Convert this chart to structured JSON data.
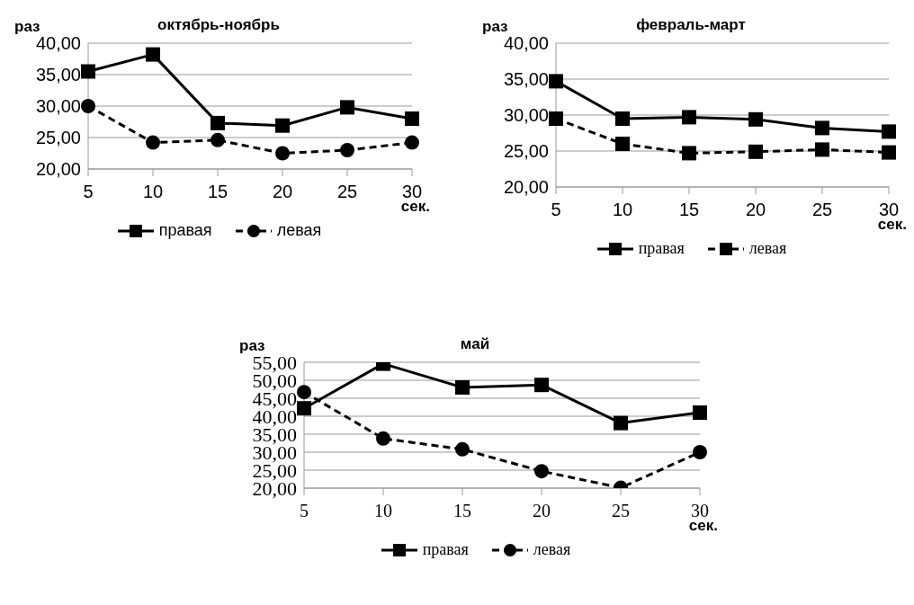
{
  "chart_data": [
    {
      "type": "line",
      "title": "октябрь-ноябрь",
      "ylabel": "раз",
      "xlabel": "сек.",
      "categories": [
        "5",
        "10",
        "15",
        "20",
        "25",
        "30"
      ],
      "series": [
        {
          "name": "правая",
          "color": "#000000",
          "marker": "square",
          "line_style": "solid",
          "values": [
            35.5,
            38.2,
            27.3,
            26.9,
            29.8,
            28.0
          ]
        },
        {
          "name": "левая",
          "color": "#000000",
          "marker": "circle",
          "line_style": "dashed",
          "values": [
            30.0,
            24.2,
            24.6,
            22.5,
            23.0,
            24.2
          ]
        }
      ],
      "ylim": [
        20,
        40
      ],
      "yticks": [
        {
          "value": 20,
          "label": "20,00"
        },
        {
          "value": 25,
          "label": "25,00"
        },
        {
          "value": 30,
          "label": "30,00"
        },
        {
          "value": 35,
          "label": "35,00"
        },
        {
          "value": 40,
          "label": "40,00"
        }
      ],
      "grid": "y",
      "legend": "bottom"
    },
    {
      "type": "line",
      "title": "февраль-март",
      "ylabel": "раз",
      "xlabel": "сек.",
      "categories": [
        "5",
        "10",
        "15",
        "20",
        "25",
        "30"
      ],
      "series": [
        {
          "name": "правая",
          "color": "#000000",
          "marker": "square",
          "line_style": "solid",
          "values": [
            34.7,
            29.5,
            29.7,
            29.4,
            28.2,
            27.7
          ]
        },
        {
          "name": "левая",
          "color": "#000000",
          "marker": "square",
          "line_style": "dashed",
          "values": [
            29.5,
            26.0,
            24.7,
            24.9,
            25.2,
            24.8
          ]
        }
      ],
      "ylim": [
        20,
        40
      ],
      "yticks": [
        {
          "value": 20,
          "label": "20,00"
        },
        {
          "value": 25,
          "label": "25,00"
        },
        {
          "value": 30,
          "label": "30,00"
        },
        {
          "value": 35,
          "label": "35,00"
        },
        {
          "value": 40,
          "label": "40,00"
        }
      ],
      "grid": "y",
      "legend": "bottom"
    },
    {
      "type": "line",
      "title": "май",
      "ylabel": "раз",
      "xlabel": "сек.",
      "categories": [
        "5",
        "10",
        "15",
        "20",
        "25",
        "30"
      ],
      "series": [
        {
          "name": "правая",
          "color": "#000000",
          "marker": "square",
          "line_style": "solid",
          "values": [
            42.2,
            54.6,
            48.0,
            48.7,
            38.1,
            41.0
          ]
        },
        {
          "name": "левая",
          "color": "#000000",
          "marker": "circle",
          "line_style": "dashed",
          "values": [
            46.7,
            33.8,
            30.8,
            24.7,
            20.1,
            30.0
          ]
        }
      ],
      "ylim": [
        20,
        55
      ],
      "yticks": [
        {
          "value": 20,
          "label": "20,00"
        },
        {
          "value": 25,
          "label": "25,00"
        },
        {
          "value": 30,
          "label": "30,00"
        },
        {
          "value": 35,
          "label": "35,00"
        },
        {
          "value": 40,
          "label": "40,00"
        },
        {
          "value": 45,
          "label": "45,00"
        },
        {
          "value": 50,
          "label": "50,00"
        },
        {
          "value": 55,
          "label": "55,00"
        }
      ],
      "grid": "y",
      "legend": "bottom"
    }
  ]
}
